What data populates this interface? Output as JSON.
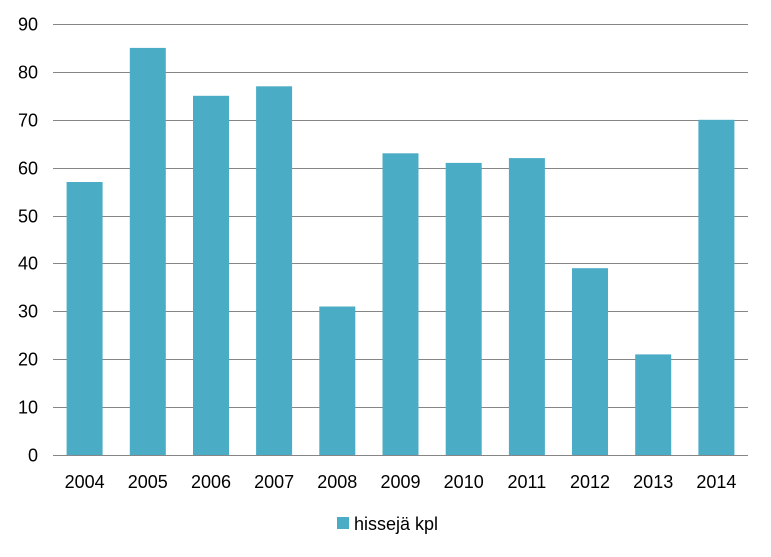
{
  "chart_data": {
    "type": "bar",
    "title": "",
    "xlabel": "",
    "ylabel": "",
    "categories": [
      "2004",
      "2005",
      "2006",
      "2007",
      "2008",
      "2009",
      "2010",
      "2011",
      "2012",
      "2013",
      "2014"
    ],
    "series": [
      {
        "name": "hissejä kpl",
        "values": [
          57,
          85,
          75,
          77,
          31,
          63,
          61,
          62,
          39,
          21,
          70
        ],
        "color": "#4bacc6"
      }
    ],
    "ylim": [
      0,
      90
    ],
    "yticks": [
      "0",
      "10",
      "20",
      "30",
      "40",
      "50",
      "60",
      "70",
      "80",
      "90"
    ],
    "grid": true,
    "legend_position": "bottom"
  }
}
